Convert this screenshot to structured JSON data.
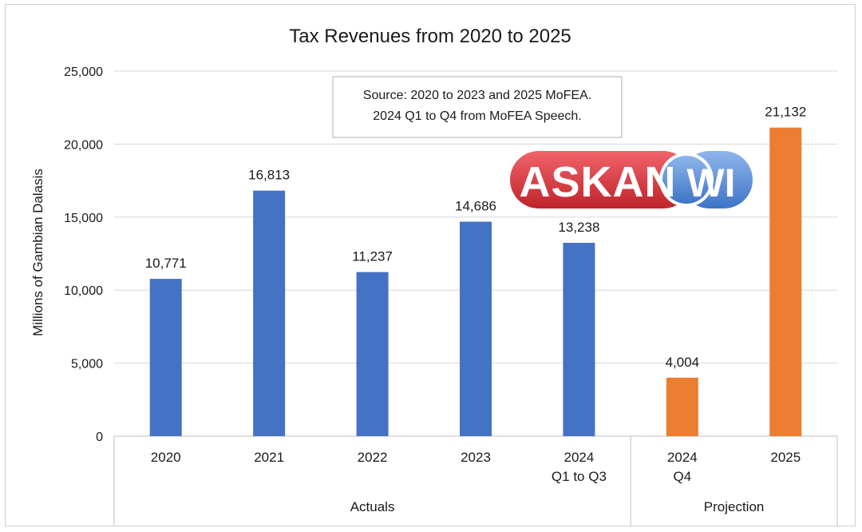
{
  "chart_data": {
    "type": "bar",
    "title": "Tax Revenues from 2020 to 2025",
    "ylabel": "Millions of Gambian Dalasis",
    "xlabel": "",
    "ylim": [
      0,
      25000
    ],
    "yticks": [
      0,
      5000,
      10000,
      15000,
      20000,
      25000
    ],
    "ytick_labels": [
      "0",
      "5,000",
      "10,000",
      "15,000",
      "20,000",
      "25,000"
    ],
    "grid": true,
    "categories": [
      {
        "line1": "2020",
        "line2": "",
        "value": 10771,
        "label": "10,771",
        "group": "Actuals"
      },
      {
        "line1": "2021",
        "line2": "",
        "value": 16813,
        "label": "16,813",
        "group": "Actuals"
      },
      {
        "line1": "2022",
        "line2": "",
        "value": 11237,
        "label": "11,237",
        "group": "Actuals"
      },
      {
        "line1": "2023",
        "line2": "",
        "value": 14686,
        "label": "14,686",
        "group": "Actuals"
      },
      {
        "line1": "2024",
        "line2": "Q1 to Q3",
        "value": 13238,
        "label": "13,238",
        "group": "Actuals"
      },
      {
        "line1": "2024",
        "line2": "Q4",
        "value": 4004,
        "label": "4,004",
        "group": "Projection"
      },
      {
        "line1": "2025",
        "line2": "",
        "value": 21132,
        "label": "21,132",
        "group": "Projection"
      }
    ],
    "groups": [
      {
        "name": "Actuals",
        "color": "#4472C4"
      },
      {
        "name": "Projection",
        "color": "#ED7D31"
      }
    ],
    "annotation": {
      "line1": "Source: 2020 to 2023 and 2025 MoFEA.",
      "line2": "2024 Q1 to Q4 from MoFEA Speech."
    }
  },
  "watermark": {
    "text_left": "ASKAN",
    "text_right": "WI",
    "colors": {
      "red": "#D9343B",
      "blue": "#5B8FD6"
    }
  },
  "colors": {
    "grid": "#d9d9d9",
    "axis": "#bfbfbf"
  }
}
